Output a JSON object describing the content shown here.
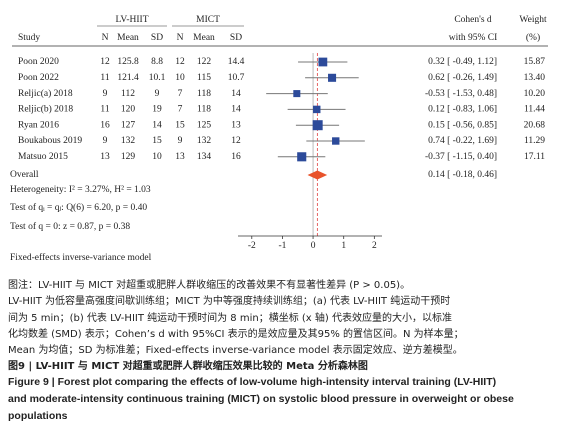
{
  "chart_data": {
    "type": "forest",
    "study_header": "Study",
    "groups": [
      "LV-HIIT",
      "MICT"
    ],
    "columns": [
      "N",
      "Mean",
      "SD"
    ],
    "effect_header": [
      "Cohen's d",
      "with 95% CI"
    ],
    "weight_header": [
      "Weight",
      "(%)"
    ],
    "studies": [
      "Poon 2020",
      "Poon 2022",
      "Reljic(a) 2018",
      "Reljic(b) 2018",
      "Ryan 2016",
      "Boukabous 2019",
      "Matsuo 2015"
    ],
    "lv_hiit": {
      "n": [
        12,
        11,
        9,
        11,
        16,
        9,
        13
      ],
      "mean": [
        125.8,
        121.4,
        112,
        120,
        127,
        132,
        129
      ],
      "sd": [
        8.8,
        10.1,
        9,
        19,
        14,
        15,
        10
      ]
    },
    "mict": {
      "n": [
        12,
        10,
        7,
        7,
        15,
        9,
        13
      ],
      "mean": [
        122,
        115,
        118,
        118,
        125,
        132,
        134
      ],
      "sd": [
        14.4,
        10.7,
        14,
        14,
        13,
        12,
        16
      ]
    },
    "values": [
      0.32,
      0.62,
      -0.53,
      0.12,
      0.15,
      0.74,
      -0.37
    ],
    "ci_low": [
      -0.49,
      -0.26,
      -1.53,
      -0.83,
      -0.56,
      -0.22,
      -1.15
    ],
    "ci_high": [
      1.12,
      1.49,
      0.48,
      1.06,
      0.85,
      1.69,
      0.4
    ],
    "value_labels": [
      "0.32 [ -0.49, 1.12]",
      "0.62 [ -0.26, 1.49]",
      "-0.53 [ -1.53, 0.48]",
      "0.12 [ -0.83, 1.06]",
      "0.15 [ -0.56, 0.85]",
      "0.74 [ -0.22, 1.69]",
      "-0.37 [ -1.15, 0.40]"
    ],
    "weights": [
      15.87,
      13.4,
      10.2,
      11.44,
      20.68,
      11.29,
      17.11
    ],
    "weight_labels": [
      "15.87",
      "13.40",
      "10.20",
      "11.44",
      "20.68",
      "11.29",
      "17.11"
    ],
    "overall": {
      "label": "Overall",
      "value": 0.14,
      "ci_low": -0.18,
      "ci_high": 0.46,
      "value_label": "0.14 [ -0.18, 0.46]"
    },
    "notes": [
      "Heterogeneity: I² = 3.27%, H² = 1.03",
      "Test of qᵢ = qⱼ: Q(6) = 6.20, p = 0.40",
      "Test of q = 0: z = 0.87, p = 0.38"
    ],
    "model": "Fixed-effects inverse-variance model",
    "xlim": [
      -2.45,
      2.25
    ],
    "xticks": [
      -2,
      -1,
      0,
      1,
      2
    ],
    "square_color": "#2c4a9a",
    "overall_color": "#e8532b"
  },
  "caption": {
    "note": [
      "图注：LV-HIIT 与 MICT 对超重或肥胖人群收缩压的改善效果不有显著性差异 (P > 0.05)。",
      "LV-HIIT 为低容量高强度间歇训练组；MICT 为中等强度持续训练组；(a) 代表 LV-HIIT 纯运动干预时",
      "间为 5 min；(b) 代表 LV-HIIT 纯运动干预时间为 8 min；横坐标 (x 轴) 代表效应量的大小，以标准",
      "化均数差 (SMD) 表示；Cohen’s d with 95%CI 表示的是效应量及其95% 的置信区间。N 为样本量；",
      "Mean 为均值；SD 为标准差；Fixed-effects inverse-variance model 表示固定效应、逆方差模型。"
    ],
    "title_cn": "图9 | LV-HIIT 与 MICT 对超重或肥胖人群收缩压效果比较的 Meta 分析森林图",
    "title_en": [
      "Figure 9 | Forest plot comparing the effects of low-volume high-intensity interval training (LV-HIIT)",
      "and moderate-intensity continuous training (MICT) on systolic blood pressure in overweight or obese",
      "populations"
    ]
  }
}
